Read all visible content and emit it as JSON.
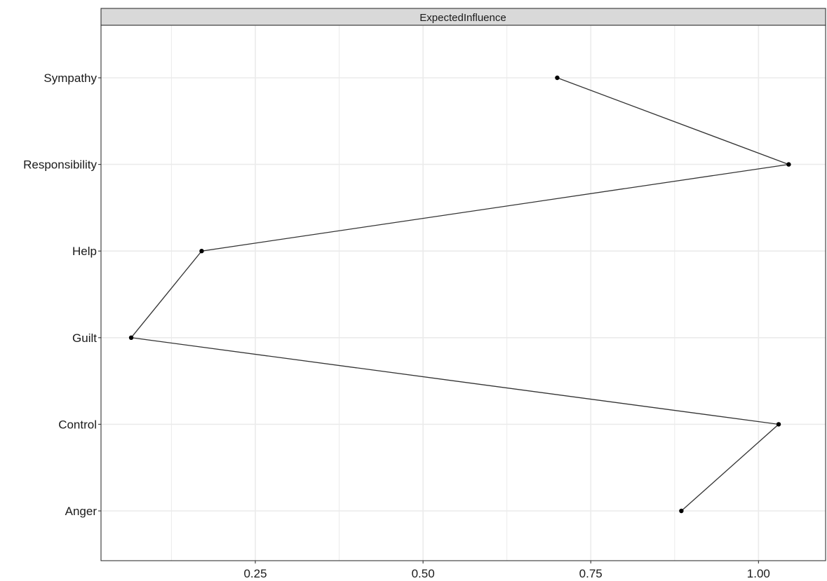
{
  "chart_data": {
    "type": "line",
    "facet_title": "ExpectedInfluence",
    "orientation": "horizontal",
    "categories": [
      "Sympathy",
      "Responsibility",
      "Help",
      "Guilt",
      "Control",
      "Anger"
    ],
    "values": [
      0.7,
      1.045,
      0.17,
      0.065,
      1.03,
      0.885
    ],
    "x_ticks": [
      "0.25",
      "0.50",
      "0.75",
      "1.00"
    ],
    "x_tick_values": [
      0.25,
      0.5,
      0.75,
      1.0
    ],
    "xlim": [
      0.02,
      1.1
    ],
    "title": "",
    "xlabel": "",
    "ylabel": "",
    "grid": true,
    "legend": "none",
    "colors": {
      "line": "#333333",
      "point": "#000000",
      "grid": "#ebebeb",
      "strip_fill": "#d9d9d9",
      "strip_border": "#333333"
    }
  }
}
